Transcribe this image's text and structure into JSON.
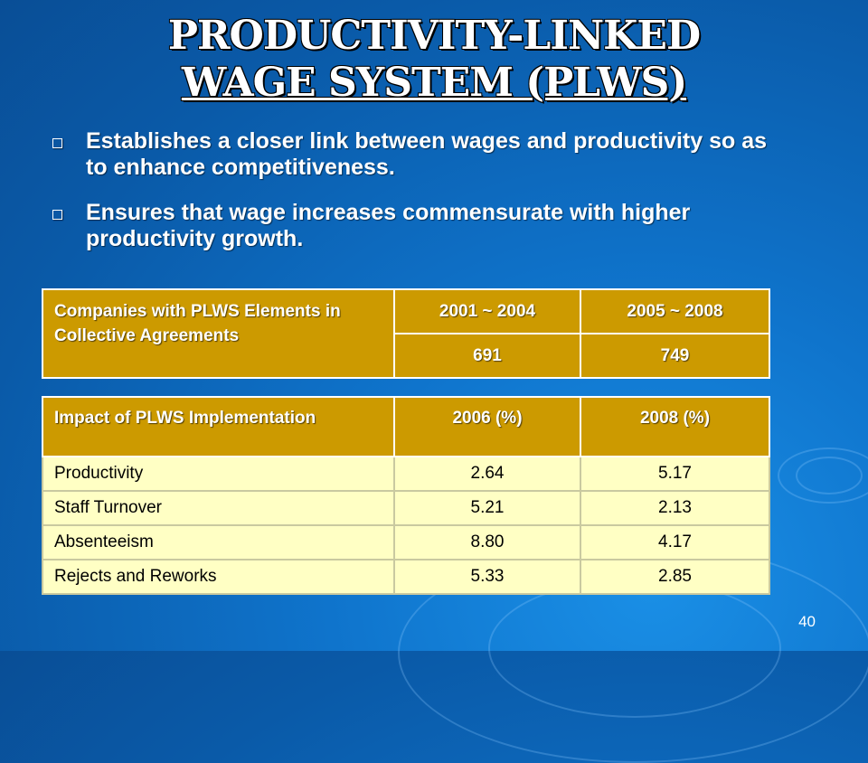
{
  "slide": {
    "title_line1": "PRODUCTIVITY-LINKED",
    "title_line2": "WAGE SYSTEM (PLWS)",
    "bullets": [
      "Establishes a closer link between wages and productivity so as to enhance competitiveness.",
      "Ensures that wage increases commensurate with higher productivity growth."
    ],
    "page_number": "40",
    "colors": {
      "background": "#0f74cc",
      "table_header": "#cc9a00",
      "table_row": "#ffffc4"
    }
  },
  "table1": {
    "header": "Companies with PLWS Elements in Collective Agreements",
    "col1_label": "2001 ~ 2004",
    "col2_label": "2005 ~ 2008",
    "col1_value": "691",
    "col2_value": "749"
  },
  "table2": {
    "header": "Impact of PLWS Implementation",
    "col1_label": "2006 (%)",
    "col2_label": "2008 (%)",
    "rows": [
      {
        "label": "Productivity",
        "v2006": "2.64",
        "v2008": "5.17"
      },
      {
        "label": "Staff Turnover",
        "v2006": "5.21",
        "v2008": "2.13"
      },
      {
        "label": "Absenteeism",
        "v2006": "8.80",
        "v2008": "4.17"
      },
      {
        "label": "Rejects and Reworks",
        "v2006": "5.33",
        "v2008": "2.85"
      }
    ]
  }
}
